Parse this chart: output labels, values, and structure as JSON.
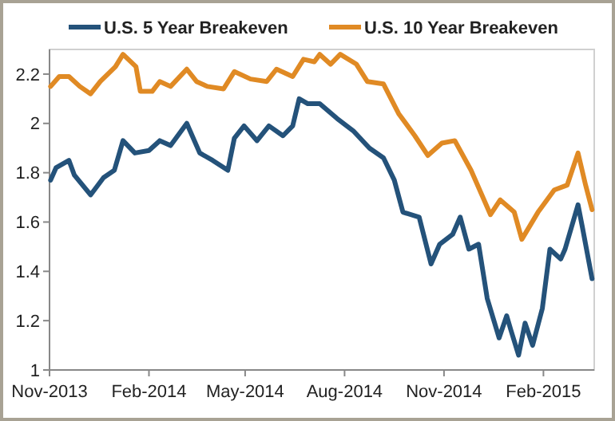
{
  "chart_data": {
    "type": "line",
    "x": [
      "2013-11-02",
      "2013-11-10",
      "2013-11-19",
      "2013-11-29",
      "2013-12-09",
      "2013-12-18",
      "2014-01-01",
      "2014-01-08",
      "2014-01-20",
      "2014-01-24",
      "2014-02-04",
      "2014-02-11",
      "2014-02-21",
      "2014-03-08",
      "2014-03-17",
      "2014-03-27",
      "2014-04-11",
      "2014-04-21",
      "2014-05-06",
      "2014-05-21",
      "2014-05-30",
      "2014-06-14",
      "2014-06-24",
      "2014-07-04",
      "2014-07-09",
      "2014-07-19",
      "2014-07-28",
      "2014-08-12",
      "2014-08-22",
      "2014-09-06",
      "2014-09-20",
      "2014-10-05",
      "2014-10-17",
      "2014-10-30",
      "2014-11-11",
      "2014-11-26",
      "2014-12-14",
      "2014-12-23",
      "2015-01-05",
      "2015-01-12",
      "2015-01-27",
      "2015-02-11",
      "2015-02-23",
      "2015-03-05",
      "2015-03-12",
      "2015-03-18"
    ],
    "series": [
      {
        "name": "U.S. 5 Year Breakeven",
        "color": "#24527a",
        "x": [
          "2013-11-02",
          "2013-11-07",
          "2013-11-19",
          "2013-11-24",
          "2013-12-09",
          "2013-12-21",
          "2013-12-31",
          "2014-01-08",
          "2014-01-19",
          "2014-02-01",
          "2014-02-11",
          "2014-02-21",
          "2014-03-08",
          "2014-03-20",
          "2014-04-01",
          "2014-04-15",
          "2014-04-21",
          "2014-04-30",
          "2014-05-12",
          "2014-05-23",
          "2014-06-05",
          "2014-06-14",
          "2014-06-20",
          "2014-06-28",
          "2014-07-09",
          "2014-07-25",
          "2014-08-09",
          "2014-08-24",
          "2014-09-06",
          "2014-09-16",
          "2014-09-24",
          "2014-10-09",
          "2014-10-20",
          "2014-10-28",
          "2014-11-09",
          "2014-11-16",
          "2014-11-24",
          "2014-12-03",
          "2014-12-11",
          "2014-12-22",
          "2014-12-29",
          "2015-01-02",
          "2015-01-09",
          "2015-01-15",
          "2015-01-22",
          "2015-01-31",
          "2015-02-07",
          "2015-02-17",
          "2015-02-21",
          "2015-03-05",
          "2015-03-09",
          "2015-03-18"
        ],
        "values": [
          1.77,
          1.82,
          1.85,
          1.79,
          1.71,
          1.78,
          1.81,
          1.93,
          1.88,
          1.89,
          1.93,
          1.91,
          2.0,
          1.88,
          1.85,
          1.81,
          1.94,
          1.99,
          1.93,
          1.99,
          1.95,
          1.99,
          2.1,
          2.08,
          2.08,
          2.02,
          1.97,
          1.9,
          1.86,
          1.77,
          1.64,
          1.62,
          1.43,
          1.51,
          1.55,
          1.62,
          1.49,
          1.51,
          1.29,
          1.13,
          1.22,
          1.16,
          1.06,
          1.19,
          1.1,
          1.25,
          1.49,
          1.45,
          1.49,
          1.67,
          1.58,
          1.37
        ]
      },
      {
        "name": "U.S. 10 Year Breakeven",
        "color": "#e08a24",
        "values": [
          2.15,
          2.19,
          2.19,
          2.15,
          2.12,
          2.17,
          2.23,
          2.28,
          2.23,
          2.13,
          2.13,
          2.17,
          2.15,
          2.22,
          2.17,
          2.15,
          2.14,
          2.21,
          2.18,
          2.17,
          2.22,
          2.19,
          2.26,
          2.25,
          2.28,
          2.24,
          2.28,
          2.24,
          2.17,
          2.16,
          2.04,
          1.95,
          1.87,
          1.92,
          1.93,
          1.81,
          1.63,
          1.69,
          1.64,
          1.53,
          1.64,
          1.73,
          1.75,
          1.88,
          1.75,
          1.65
        ]
      }
    ],
    "xlim": [
      "2013-11-01",
      "2015-03-20"
    ],
    "xticks": [
      {
        "value": "2013-11-01",
        "label": "Nov-2013"
      },
      {
        "value": "2014-02-01",
        "label": "Feb-2014"
      },
      {
        "value": "2014-05-01",
        "label": "May-2014"
      },
      {
        "value": "2014-08-01",
        "label": "Aug-2014"
      },
      {
        "value": "2014-11-01",
        "label": "Nov-2014"
      },
      {
        "value": "2015-02-01",
        "label": "Feb-2015"
      }
    ],
    "ylim": [
      1,
      2.3
    ],
    "yticks": [
      1,
      1.2,
      1.4,
      1.6,
      1.8,
      2,
      2.2
    ],
    "legend": "top",
    "grid": false,
    "marker": "none",
    "line_style": "solid"
  }
}
